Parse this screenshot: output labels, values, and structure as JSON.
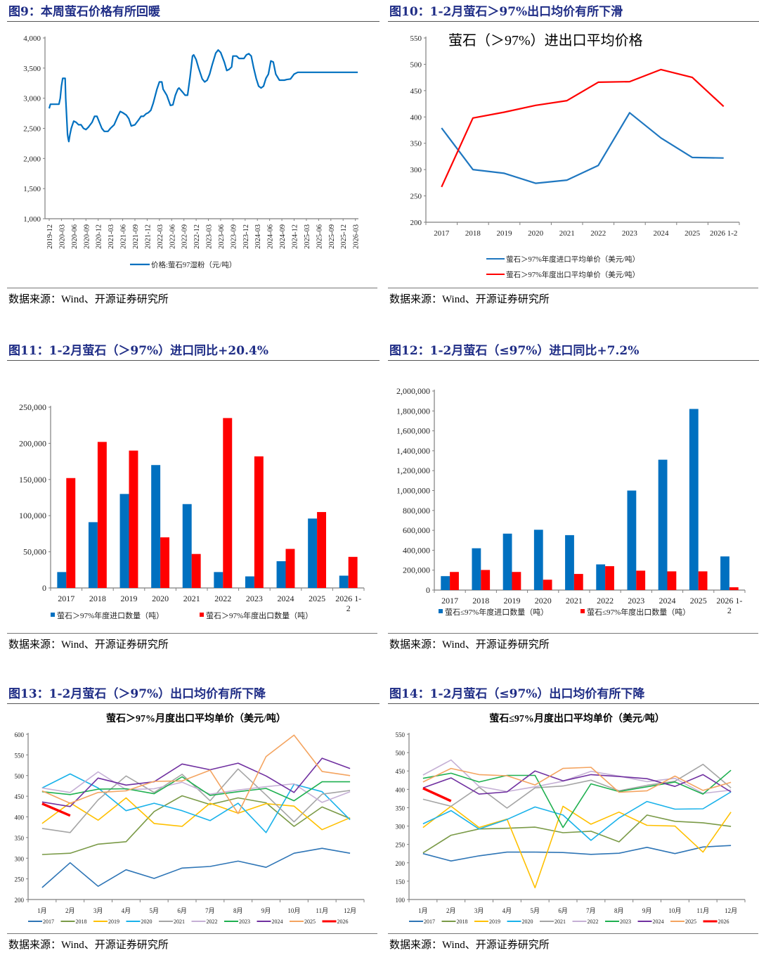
{
  "source_label": "数据来源：Wind、开源证券研究所",
  "chart_data": [
    {
      "id": "fig9",
      "figure_title": "图9：本周萤石价格有所回暖",
      "type": "line",
      "title": "",
      "xlabel": "",
      "ylabel": "",
      "ylim": [
        1000,
        4000
      ],
      "yticks": [
        1000,
        1500,
        2000,
        2500,
        3000,
        3500,
        4000
      ],
      "ytick_labels": [
        "1,000",
        "1,500",
        "2,000",
        "2,500",
        "3,000",
        "3,500",
        "4,000"
      ],
      "categories": [
        "2019-12",
        "2020-03",
        "2020-06",
        "2020-09",
        "2020-12",
        "2021-03",
        "2021-06",
        "2021-09",
        "2021-12",
        "2022-03",
        "2022-06",
        "2022-09",
        "2022-12",
        "2023-03",
        "2023-06",
        "2023-09",
        "2023-12",
        "2024-03",
        "2024-06",
        "2024-09",
        "2024-12",
        "2025-03",
        "2025-06",
        "2025-09",
        "2025-12",
        "2026-03"
      ],
      "legend": [
        "价格:萤石97湿粉（元/吨）"
      ],
      "legend_position": "bottom",
      "series": [
        {
          "name": "价格:萤石97湿粉（元/吨）",
          "color": "#0070c0",
          "x": [
            0,
            0.1,
            0.3,
            0.8,
            0.9,
            1.0,
            1.1,
            1.3,
            1.35,
            1.5,
            1.55,
            1.6,
            1.7,
            1.8,
            1.9,
            2.0,
            2.2,
            2.4,
            2.6,
            2.8,
            3.0,
            3.2,
            3.5,
            3.7,
            3.9,
            4.1,
            4.3,
            4.5,
            4.7,
            4.8,
            5.0,
            5.3,
            5.6,
            5.8,
            6.0,
            6.3,
            6.5,
            6.7,
            7.0,
            7.3,
            7.5,
            7.7,
            7.9,
            8.1,
            8.3,
            8.5,
            8.8,
            9.0,
            9.2,
            9.3,
            9.6,
            9.9,
            10.1,
            10.3,
            10.5,
            10.6,
            10.9,
            11.1,
            11.3,
            11.5,
            11.7,
            11.8,
            12.0,
            12.2,
            12.5,
            12.7,
            12.9,
            13.1,
            13.3,
            13.6,
            13.8,
            14.0,
            14.3,
            14.5,
            14.7,
            14.9,
            15.0,
            15.3,
            15.5,
            15.7,
            15.9,
            16.1,
            16.3,
            16.5,
            16.7,
            16.9,
            17.1,
            17.3,
            17.5,
            17.7,
            17.9,
            18.1,
            18.3,
            18.5,
            18.8,
            19.0,
            19.2,
            19.4,
            19.7,
            20.0,
            20.3,
            20.6,
            20.8,
            21.0,
            21.3,
            21.6,
            21.8,
            22.0,
            22.2,
            22.4,
            22.6,
            22.8,
            23.0,
            23.1,
            23.3,
            23.5,
            23.8,
            24.0,
            24.3,
            24.6,
            24.8,
            25.0,
            25.2
          ],
          "y": [
            2830,
            2900,
            2900,
            2900,
            3000,
            3200,
            3330,
            3330,
            3000,
            2400,
            2330,
            2280,
            2400,
            2500,
            2560,
            2620,
            2600,
            2560,
            2560,
            2500,
            2480,
            2520,
            2600,
            2700,
            2700,
            2600,
            2500,
            2450,
            2450,
            2450,
            2500,
            2560,
            2700,
            2780,
            2760,
            2720,
            2660,
            2540,
            2560,
            2640,
            2700,
            2700,
            2740,
            2760,
            2800,
            2920,
            3150,
            3270,
            3270,
            3150,
            3050,
            2880,
            2890,
            3050,
            3150,
            3170,
            3100,
            3050,
            3050,
            3350,
            3700,
            3720,
            3640,
            3500,
            3320,
            3270,
            3300,
            3400,
            3550,
            3750,
            3800,
            3760,
            3600,
            3460,
            3480,
            3520,
            3700,
            3700,
            3660,
            3660,
            3660,
            3720,
            3740,
            3700,
            3500,
            3330,
            3200,
            3170,
            3200,
            3330,
            3400,
            3620,
            3600,
            3400,
            3300,
            3300,
            3300,
            3310,
            3320,
            3400,
            3430,
            3430,
            3430,
            3430,
            3430,
            3430,
            3430,
            3430,
            3430,
            3430,
            3430,
            3430,
            3430,
            3430,
            3430,
            3430,
            3430,
            3430,
            3430,
            3430,
            3430,
            3430,
            3430
          ]
        }
      ]
    },
    {
      "id": "fig10",
      "figure_title": "图10：1-2月萤石＞97%出口均价有所下滑",
      "type": "line",
      "title": "萤石（＞97%）进出口平均价格",
      "xlabel": "",
      "ylabel": "",
      "ylim": [
        200,
        550
      ],
      "yticks": [
        200,
        250,
        300,
        350,
        400,
        450,
        500,
        550
      ],
      "ytick_labels": [
        "200",
        "250",
        "300",
        "350",
        "400",
        "450",
        "500",
        "550"
      ],
      "categories": [
        "2017",
        "2018",
        "2019",
        "2020",
        "2021",
        "2022",
        "2023",
        "2024",
        "2025",
        "2026 1-2"
      ],
      "legend_position": "bottom",
      "series": [
        {
          "name": "萤石＞97%年度进口平均单价（美元/吨）",
          "color": "#1f77c0",
          "values": [
            379,
            300,
            293,
            274,
            280,
            308,
            408,
            360,
            323,
            322
          ]
        },
        {
          "name": "萤石＞97%年度出口平均单价（美元/吨）",
          "color": "#ff0000",
          "values": [
            267,
            398,
            409,
            422,
            431,
            466,
            467,
            490,
            475,
            420
          ]
        }
      ]
    },
    {
      "id": "fig11",
      "figure_title": "图11：1-2月萤石（＞97%）进口同比+20.4%",
      "type": "bar",
      "title": "",
      "xlabel": "",
      "ylabel": "",
      "ylim": [
        0,
        250000
      ],
      "yticks": [
        0,
        50000,
        100000,
        150000,
        200000,
        250000
      ],
      "ytick_labels": [
        "0",
        "50,000",
        "100,000",
        "150,000",
        "200,000",
        "250,000"
      ],
      "categories": [
        "2017",
        "2018",
        "2019",
        "2020",
        "2021",
        "2022",
        "2023",
        "2024",
        "2025",
        "2026 1-2"
      ],
      "legend_position": "bottom",
      "series": [
        {
          "name": "萤石＞97%年度进口数量（吨）",
          "color": "#0070c0",
          "values": [
            22000,
            91000,
            130000,
            170000,
            116000,
            22000,
            16000,
            37000,
            96000,
            17000
          ]
        },
        {
          "name": "萤石＞97%年度出口数量（吨）",
          "color": "#ff0000",
          "values": [
            152000,
            202000,
            190000,
            70000,
            47000,
            235000,
            182000,
            54000,
            105000,
            43000
          ]
        }
      ]
    },
    {
      "id": "fig12",
      "figure_title": "图12：1-2月萤石（≤97%）进口同比+7.2%",
      "type": "bar",
      "title": "",
      "xlabel": "",
      "ylabel": "",
      "ylim": [
        0,
        2000000
      ],
      "yticks": [
        0,
        200000,
        400000,
        600000,
        800000,
        1000000,
        1200000,
        1400000,
        1600000,
        1800000,
        2000000
      ],
      "ytick_labels": [
        "0",
        "200,000",
        "400,000",
        "600,000",
        "800,000",
        "1,000,000",
        "1,200,000",
        "1,400,000",
        "1,600,000",
        "1,800,000",
        "2,000,000"
      ],
      "categories": [
        "2017",
        "2018",
        "2019",
        "2020",
        "2021",
        "2022",
        "2023",
        "2024",
        "2025",
        "2026 1-2"
      ],
      "legend_position": "bottom",
      "series": [
        {
          "name": "萤石≤97%年度进口数量（吨）",
          "color": "#0070c0",
          "values": [
            140000,
            420000,
            567000,
            606000,
            552000,
            258000,
            1000000,
            1310000,
            1820000,
            338000
          ]
        },
        {
          "name": "萤石≤97%年度出口数量（吨）",
          "color": "#ff0000",
          "values": [
            182000,
            202000,
            182000,
            104000,
            162000,
            240000,
            195000,
            188000,
            188000,
            28000
          ]
        }
      ]
    },
    {
      "id": "fig13",
      "figure_title": "图13：1-2月萤石（＞97%）出口均价有所下降",
      "type": "line",
      "title": "萤石＞97%月度出口平均单价（美元/吨）",
      "xlabel": "",
      "ylabel": "",
      "ylim": [
        200,
        600
      ],
      "yticks": [
        200,
        250,
        300,
        350,
        400,
        450,
        500,
        550,
        600
      ],
      "ytick_labels": [
        "200",
        "250",
        "300",
        "350",
        "400",
        "450",
        "500",
        "550",
        "600"
      ],
      "categories": [
        "1月",
        "2月",
        "3月",
        "4月",
        "5月",
        "6月",
        "7月",
        "8月",
        "9月",
        "10月",
        "11月",
        "12月"
      ],
      "legend_position": "bottom",
      "series": [
        {
          "name": "2017",
          "color": "#2e75b6",
          "values": [
            229,
            289,
            232,
            272,
            251,
            276,
            280,
            293,
            278,
            312,
            324,
            312
          ]
        },
        {
          "name": "2018",
          "color": "#7a9a47",
          "values": [
            309,
            312,
            334,
            340,
            413,
            451,
            430,
            446,
            434,
            377,
            424,
            396
          ]
        },
        {
          "name": "2019",
          "color": "#ffc000",
          "values": [
            384,
            434,
            392,
            446,
            384,
            377,
            433,
            409,
            432,
            426,
            369,
            398
          ]
        },
        {
          "name": "2020",
          "color": "#1ab2ea",
          "values": [
            470,
            504,
            470,
            415,
            433,
            415,
            391,
            433,
            362,
            479,
            461,
            393
          ]
        },
        {
          "name": "2021",
          "color": "#a5a5a5",
          "values": [
            372,
            362,
            441,
            499,
            459,
            503,
            439,
            516,
            453,
            388,
            455,
            464
          ]
        },
        {
          "name": "2022",
          "color": "#c5b0d5",
          "values": [
            470,
            459,
            509,
            466,
            468,
            484,
            455,
            465,
            473,
            480,
            435,
            461
          ]
        },
        {
          "name": "2023",
          "color": "#1fb050",
          "values": [
            461,
            454,
            467,
            468,
            456,
            497,
            452,
            461,
            469,
            439,
            485,
            485
          ]
        },
        {
          "name": "2024",
          "color": "#7030a0",
          "values": [
            436,
            425,
            494,
            477,
            485,
            528,
            514,
            530,
            499,
            459,
            542,
            517
          ]
        },
        {
          "name": "2025",
          "color": "#f4a460",
          "values": [
            463,
            433,
            459,
            463,
            486,
            487,
            513,
            408,
            546,
            598,
            510,
            500
          ]
        },
        {
          "name": "2026",
          "color": "#ff0000",
          "values": [
            432,
            403
          ]
        }
      ]
    },
    {
      "id": "fig14",
      "figure_title": "图14：1-2月萤石（≤97%）出口均价有所下降",
      "type": "line",
      "title": "萤石≤97%月度出口平均单价（美元/吨）",
      "xlabel": "",
      "ylabel": "",
      "ylim": [
        100,
        550
      ],
      "yticks": [
        100,
        150,
        200,
        250,
        300,
        350,
        400,
        450,
        500,
        550
      ],
      "ytick_labels": [
        "100",
        "150",
        "200",
        "250",
        "300",
        "350",
        "400",
        "450",
        "500",
        "550"
      ],
      "categories": [
        "1月",
        "2月",
        "3月",
        "4月",
        "5月",
        "6月",
        "7月",
        "8月",
        "9月",
        "10月",
        "11月",
        "12月"
      ],
      "legend_position": "bottom",
      "series": [
        {
          "name": "2017",
          "color": "#2e75b6",
          "values": [
            225,
            205,
            219,
            229,
            229,
            228,
            223,
            226,
            242,
            225,
            243,
            247
          ]
        },
        {
          "name": "2018",
          "color": "#7a9a47",
          "values": [
            227,
            275,
            292,
            294,
            297,
            282,
            286,
            257,
            330,
            313,
            309,
            299
          ]
        },
        {
          "name": "2019",
          "color": "#ffc000",
          "values": [
            296,
            354,
            296,
            319,
            132,
            354,
            305,
            338,
            302,
            300,
            229,
            338
          ]
        },
        {
          "name": "2020",
          "color": "#1ab2ea",
          "values": [
            306,
            342,
            292,
            318,
            352,
            330,
            261,
            322,
            367,
            346,
            347,
            393
          ]
        },
        {
          "name": "2021",
          "color": "#a5a5a5",
          "values": [
            373,
            354,
            406,
            349,
            404,
            409,
            425,
            396,
            411,
            422,
            468,
            404
          ]
        },
        {
          "name": "2022",
          "color": "#c5b0d5",
          "values": [
            439,
            480,
            408,
            394,
            407,
            422,
            449,
            436,
            421,
            430,
            389,
            398
          ]
        },
        {
          "name": "2023",
          "color": "#1fb050",
          "values": [
            430,
            444,
            420,
            438,
            438,
            296,
            415,
            394,
            407,
            420,
            387,
            452
          ]
        },
        {
          "name": "2024",
          "color": "#7030a0",
          "values": [
            404,
            431,
            387,
            393,
            450,
            423,
            440,
            435,
            429,
            408,
            440,
            393
          ]
        },
        {
          "name": "2025",
          "color": "#f4a460",
          "values": [
            420,
            457,
            440,
            437,
            412,
            457,
            460,
            392,
            396,
            436,
            397,
            419
          ]
        },
        {
          "name": "2026",
          "color": "#ff0000",
          "values": [
            403,
            368
          ]
        }
      ]
    }
  ]
}
